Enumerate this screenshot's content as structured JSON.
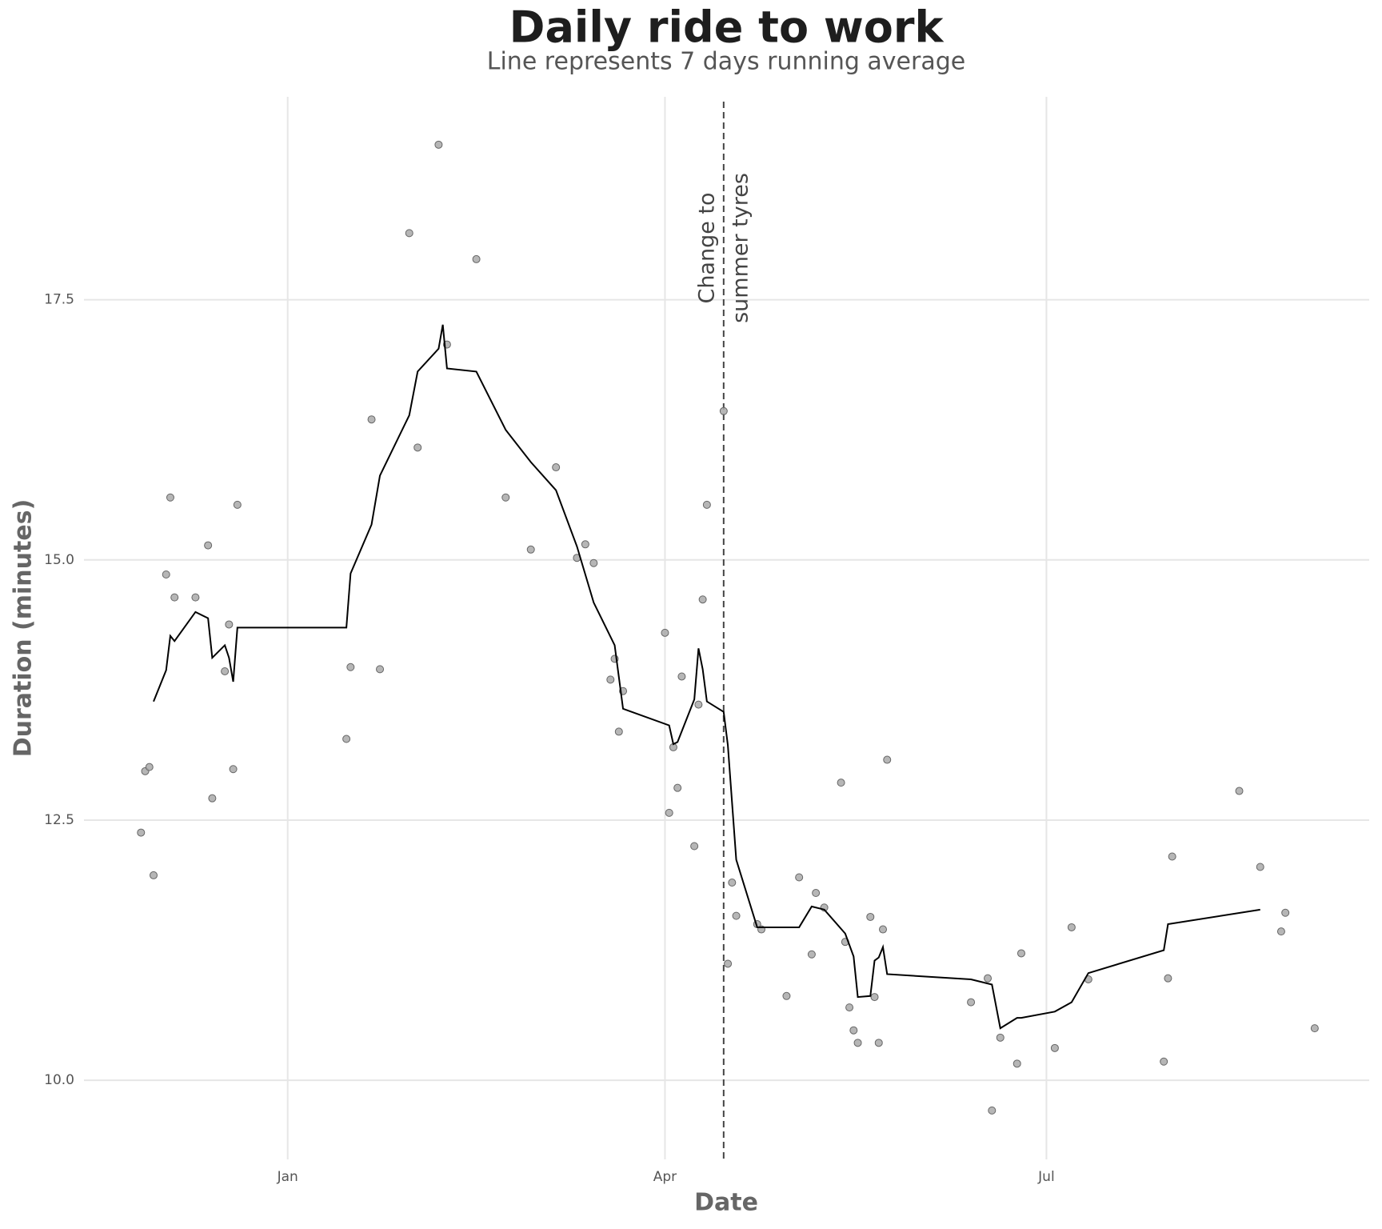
{
  "chart_data": {
    "type": "scatter",
    "title": "Daily ride to work",
    "subtitle": "Line represents 7 days running average",
    "x_label": "Date",
    "y_label": "Duration (minutes)",
    "xlim": [
      -48.6,
      258
    ],
    "xticks": [
      {
        "value": 0,
        "label": "Jan"
      },
      {
        "value": 90,
        "label": "Apr"
      },
      {
        "value": 181,
        "label": "Jul"
      }
    ],
    "ylim": [
      9.24,
      19.45
    ],
    "yticks": [
      {
        "value": 10,
        "label": "10.0"
      },
      12.5,
      {
        "value": 15,
        "label": "15.0"
      },
      17.5
    ],
    "grid": true,
    "points": {
      "color": "#a9a9a9",
      "x": [
        -35,
        -34,
        -33,
        -32,
        -29,
        -28,
        -27,
        -22,
        -19,
        -18,
        -15,
        -14,
        -13,
        -12,
        14,
        15,
        20,
        22,
        29,
        31,
        36,
        38,
        45,
        52,
        58,
        64,
        69,
        71,
        73,
        77,
        78,
        79,
        80,
        90,
        91,
        92,
        93,
        94,
        97,
        98,
        99,
        100,
        104,
        105,
        106,
        107,
        112,
        113,
        119,
        122,
        125,
        126,
        128,
        132,
        133,
        134,
        135,
        136,
        139,
        140,
        141,
        142,
        143,
        163,
        167,
        168,
        170,
        174,
        175,
        183,
        187,
        191,
        209,
        210,
        211,
        227,
        232,
        237,
        238,
        245
      ],
      "values": [
        12.38,
        12.97,
        13.01,
        11.97,
        14.86,
        15.6,
        14.64,
        14.64,
        15.14,
        12.71,
        13.93,
        14.38,
        12.99,
        15.53,
        13.28,
        13.97,
        16.35,
        13.95,
        18.14,
        16.08,
        18.99,
        17.07,
        17.89,
        15.6,
        15.1,
        15.89,
        15.02,
        15.15,
        14.97,
        13.85,
        14.05,
        13.35,
        13.74,
        14.3,
        12.57,
        13.2,
        12.81,
        13.88,
        12.25,
        13.61,
        14.62,
        15.53,
        16.43,
        11.12,
        11.9,
        11.58,
        11.5,
        11.45,
        10.81,
        11.95,
        11.21,
        11.8,
        11.66,
        12.86,
        11.33,
        10.7,
        10.48,
        10.36,
        11.57,
        10.8,
        10.36,
        11.45,
        13.08,
        10.75,
        10.98,
        9.71,
        10.41,
        10.16,
        11.22,
        10.31,
        11.47,
        10.97,
        10.18,
        10.98,
        12.15,
        12.78,
        12.05,
        11.43,
        11.61,
        10.5
      ]
    },
    "line": {
      "color": "#000000",
      "x": [
        -32,
        -29,
        -28,
        -27,
        -22,
        -19,
        -18,
        -15,
        -14,
        -13,
        -12,
        14,
        15,
        20,
        22,
        29,
        31,
        36,
        37,
        38,
        45,
        52,
        58,
        64,
        69,
        73,
        78,
        80,
        91,
        92,
        93,
        97,
        98,
        99,
        100,
        104,
        105,
        107,
        112,
        122,
        125,
        128,
        133,
        135,
        136,
        139,
        140,
        141,
        142,
        143,
        163,
        168,
        170,
        174,
        175,
        183,
        187,
        191,
        209,
        210,
        232
      ],
      "values": [
        13.64,
        13.94,
        14.27,
        14.22,
        14.5,
        14.44,
        14.06,
        14.18,
        14.06,
        13.83,
        14.35,
        14.35,
        14.87,
        15.34,
        15.81,
        16.39,
        16.81,
        17.03,
        17.26,
        16.84,
        16.81,
        16.25,
        15.94,
        15.67,
        15.13,
        14.59,
        14.18,
        13.57,
        13.41,
        13.23,
        13.25,
        13.66,
        14.15,
        13.95,
        13.64,
        13.54,
        13.22,
        12.12,
        11.47,
        11.47,
        11.67,
        11.64,
        11.41,
        11.19,
        10.8,
        10.81,
        11.15,
        11.18,
        11.28,
        11.02,
        10.97,
        10.92,
        10.5,
        10.6,
        10.6,
        10.66,
        10.75,
        11.03,
        11.25,
        11.5,
        11.64
      ]
    },
    "annotation": {
      "x": 104,
      "lines": [
        "Change to",
        "summer tyres"
      ]
    }
  }
}
